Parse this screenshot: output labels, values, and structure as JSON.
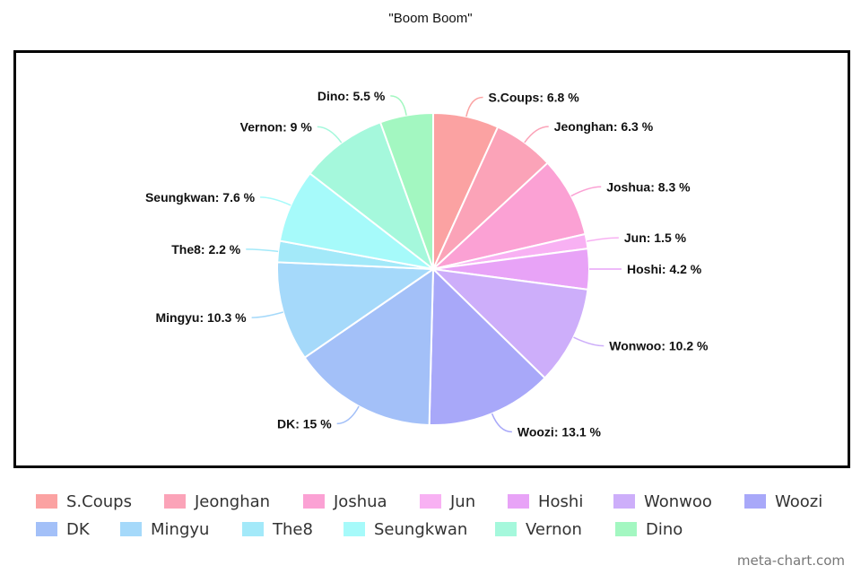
{
  "chart_data": {
    "type": "pie",
    "title": "\"Boom Boom\"",
    "categories": [
      "S.Coups",
      "Jeonghan",
      "Joshua",
      "Jun",
      "Hoshi",
      "Wonwoo",
      "Woozi",
      "DK",
      "Mingyu",
      "The8",
      "Seungkwan",
      "Vernon",
      "Dino"
    ],
    "values": [
      6.8,
      6.3,
      8.3,
      1.5,
      4.2,
      10.2,
      13.1,
      15,
      10.3,
      2.2,
      7.6,
      9,
      5.5
    ],
    "data_labels": [
      "S.Coups: 6.8 %",
      "Jeonghan: 6.3 %",
      "Joshua: 8.3 %",
      "Jun: 1.5 %",
      "Hoshi: 4.2 %",
      "Wonwoo: 10.2 %",
      "Woozi: 13.1 %",
      "DK: 15 %",
      "Mingyu: 10.3 %",
      "The8: 2.2 %",
      "Seungkwan: 7.6 %",
      "Vernon: 9 %",
      "Dino: 5.5 %"
    ],
    "colors": [
      "#fba2a2",
      "#fba3b8",
      "#fba1d4",
      "#f8b1f3",
      "#e8a3f7",
      "#cdaefa",
      "#a8a8f9",
      "#a3c0f8",
      "#a5d9fa",
      "#a3e9f9",
      "#a6fafa",
      "#a5f8dc",
      "#a3f7c1"
    ],
    "start_angle_deg": 0,
    "direction": "clockwise",
    "legend_position": "bottom",
    "legend_rows": [
      [
        "S.Coups",
        "Jeonghan",
        "Joshua",
        "Jun",
        "Hoshi",
        "Wonwoo",
        "Woozi"
      ],
      [
        "DK",
        "Mingyu",
        "The8",
        "Seungkwan",
        "Vernon",
        "Dino"
      ]
    ]
  },
  "watermark": "meta-chart.com"
}
